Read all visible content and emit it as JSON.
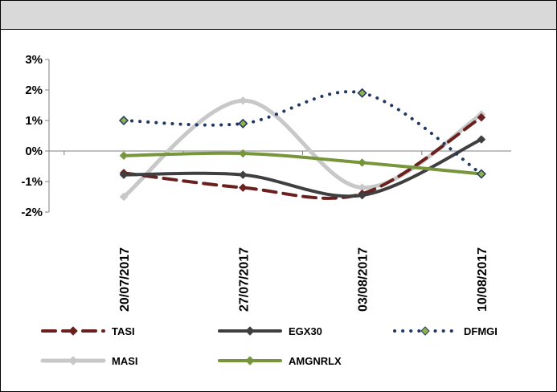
{
  "chart_data": {
    "type": "line",
    "categories": [
      "20/07/2017",
      "27/07/2017",
      "03/08/2017",
      "10/08/2017"
    ],
    "y_ticks": [
      "3%",
      "2%",
      "1%",
      "0%",
      "-1%",
      "-2%"
    ],
    "ylim": [
      -2,
      3
    ],
    "legend_position": "bottom",
    "grid": false,
    "series": [
      {
        "name": "TASI",
        "values": [
          -0.72,
          -1.2,
          -1.4,
          1.1
        ],
        "color": "#6b2020",
        "dash": "dashed",
        "marker": "diamond"
      },
      {
        "name": "EGX30",
        "values": [
          -0.78,
          -0.78,
          -1.45,
          0.38
        ],
        "color": "#3f3f3f",
        "dash": "solid",
        "marker": "diamond"
      },
      {
        "name": "DFMGI",
        "values": [
          1.0,
          0.9,
          1.9,
          -0.75
        ],
        "color": "#1f3864",
        "dash": "dotted",
        "marker": "diamond"
      },
      {
        "name": "MASI",
        "values": [
          -1.5,
          1.65,
          -1.2,
          1.2
        ],
        "color": "#c8c8c8",
        "dash": "solid",
        "marker": "diamond"
      },
      {
        "name": "AMGNRLX",
        "values": [
          -0.15,
          -0.08,
          -0.38,
          -0.75
        ],
        "color": "#77963c",
        "dash": "solid",
        "marker": "diamond"
      }
    ],
    "marker_fill": "#8fb04a"
  }
}
